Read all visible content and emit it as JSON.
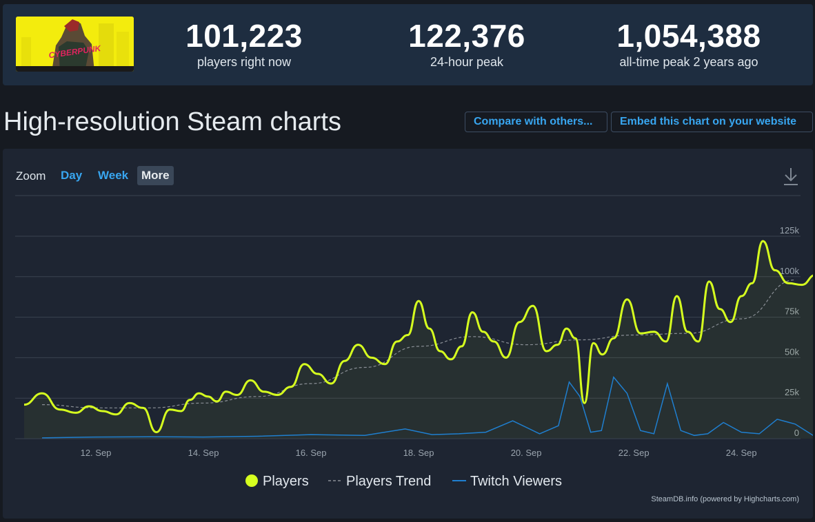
{
  "stats": [
    {
      "value": "101,223",
      "label": "players right now"
    },
    {
      "value": "122,376",
      "label": "24-hour peak"
    },
    {
      "value": "1,054,388",
      "label": "all-time peak 2 years ago"
    }
  ],
  "logo_text": "CYBERPUNK",
  "header": {
    "title": "High-resolution Steam charts",
    "compare_label": "Compare with others...",
    "embed_label": "Embed this chart on your website"
  },
  "zoom": {
    "label": "Zoom",
    "buttons": [
      {
        "label": "Day",
        "active": false
      },
      {
        "label": "Week",
        "active": false
      },
      {
        "label": "More",
        "active": true
      }
    ]
  },
  "legend": {
    "players": "Players",
    "trend": "Players Trend",
    "twitch": "Twitch Viewers"
  },
  "credit": "SteamDB.info (powered by Highcharts.com)",
  "colors": {
    "players": "#d6ff1f",
    "trend": "#8a8f96",
    "twitch": "#1f7fd0",
    "link": "#38a6f0"
  },
  "chart_data": {
    "type": "line",
    "x_unit": "date (September)",
    "xlim": [
      "11 Sep",
      "25 Sep"
    ],
    "ylim": [
      0,
      125000
    ],
    "y_ticks": [
      "0",
      "25k",
      "50k",
      "75k",
      "100k",
      "125k"
    ],
    "x_ticks": [
      "12. Sep",
      "14. Sep",
      "16. Sep",
      "18. Sep",
      "20. Sep",
      "22. Sep",
      "24. Sep"
    ],
    "legend_placement": "bottom",
    "series": [
      {
        "name": "Players",
        "x": [
          "11 Sep",
          "11 Sep",
          "11 Sep",
          "12 Sep",
          "12 Sep",
          "12 Sep",
          "12 Sep",
          "13 Sep",
          "13 Sep",
          "13 Sep",
          "13 Sep",
          "14 Sep",
          "14 Sep",
          "14 Sep",
          "14 Sep",
          "14 Sep",
          "14 Sep",
          "15 Sep",
          "15 Sep",
          "15 Sep",
          "15 Sep",
          "16 Sep",
          "16 Sep",
          "16 Sep",
          "16 Sep",
          "17 Sep",
          "17 Sep",
          "17 Sep",
          "17 Sep",
          "18 Sep",
          "18 Sep",
          "18 Sep",
          "18 Sep",
          "18 Sep",
          "19 Sep",
          "19 Sep",
          "19 Sep",
          "19 Sep",
          "19 Sep",
          "20 Sep",
          "20 Sep",
          "20 Sep",
          "20 Sep",
          "21 Sep",
          "21 Sep",
          "21 Sep",
          "21 Sep",
          "21 Sep",
          "21 Sep",
          "22 Sep",
          "22 Sep",
          "22 Sep",
          "22 Sep",
          "23 Sep",
          "23 Sep",
          "23 Sep",
          "23 Sep",
          "23 Sep",
          "24 Sep",
          "24 Sep",
          "24 Sep",
          "24 Sep",
          "24 Sep",
          "25 Sep",
          "25 Sep",
          "25 Sep",
          "25 Sep"
        ],
        "values": [
          21000,
          28000,
          18000,
          16000,
          20000,
          17000,
          15000,
          22000,
          19000,
          4000,
          18000,
          17000,
          24000,
          28000,
          26000,
          23000,
          29000,
          27000,
          36000,
          29000,
          27000,
          32000,
          46000,
          40000,
          34000,
          48000,
          58000,
          50000,
          46000,
          60000,
          64000,
          85000,
          68000,
          54000,
          49000,
          57000,
          78000,
          66000,
          60000,
          50000,
          72000,
          82000,
          54000,
          58000,
          68000,
          62000,
          22000,
          59000,
          52000,
          62000,
          86000,
          65000,
          66000,
          60000,
          88000,
          66000,
          60000,
          97000,
          80000,
          72000,
          88000,
          96000,
          122000,
          104000,
          96000,
          95000,
          101000
        ]
      },
      {
        "name": "Players Trend",
        "x": [
          "11 Sep",
          "12 Sep",
          "13 Sep",
          "14 Sep",
          "15 Sep",
          "16 Sep",
          "17 Sep",
          "18 Sep",
          "19 Sep",
          "20 Sep",
          "21 Sep",
          "22 Sep",
          "23 Sep",
          "24 Sep",
          "25 Sep"
        ],
        "values": [
          21000,
          19000,
          19000,
          22000,
          26000,
          34000,
          44000,
          57000,
          63000,
          58000,
          61000,
          64000,
          65000,
          74000,
          98000
        ]
      },
      {
        "name": "Twitch Viewers",
        "x": [
          "11 Sep",
          "12 Sep",
          "13 Sep",
          "14 Sep",
          "15 Sep",
          "16 Sep",
          "17 Sep",
          "18 Sep",
          "18 Sep",
          "19 Sep",
          "19 Sep",
          "20 Sep",
          "20 Sep",
          "21 Sep",
          "21 Sep",
          "21 Sep",
          "21 Sep",
          "21 Sep",
          "22 Sep",
          "22 Sep",
          "22 Sep",
          "22 Sep",
          "23 Sep",
          "23 Sep",
          "23 Sep",
          "23 Sep",
          "24 Sep",
          "24 Sep",
          "24 Sep",
          "25 Sep",
          "25 Sep",
          "25 Sep"
        ],
        "values": [
          500,
          1000,
          1200,
          1000,
          1500,
          2500,
          2000,
          6000,
          2500,
          3000,
          4000,
          11000,
          3000,
          8000,
          35000,
          26000,
          4000,
          5000,
          38000,
          28000,
          5000,
          3000,
          34000,
          5000,
          2000,
          3000,
          10000,
          4000,
          3000,
          12000,
          9000,
          2000
        ]
      }
    ]
  }
}
